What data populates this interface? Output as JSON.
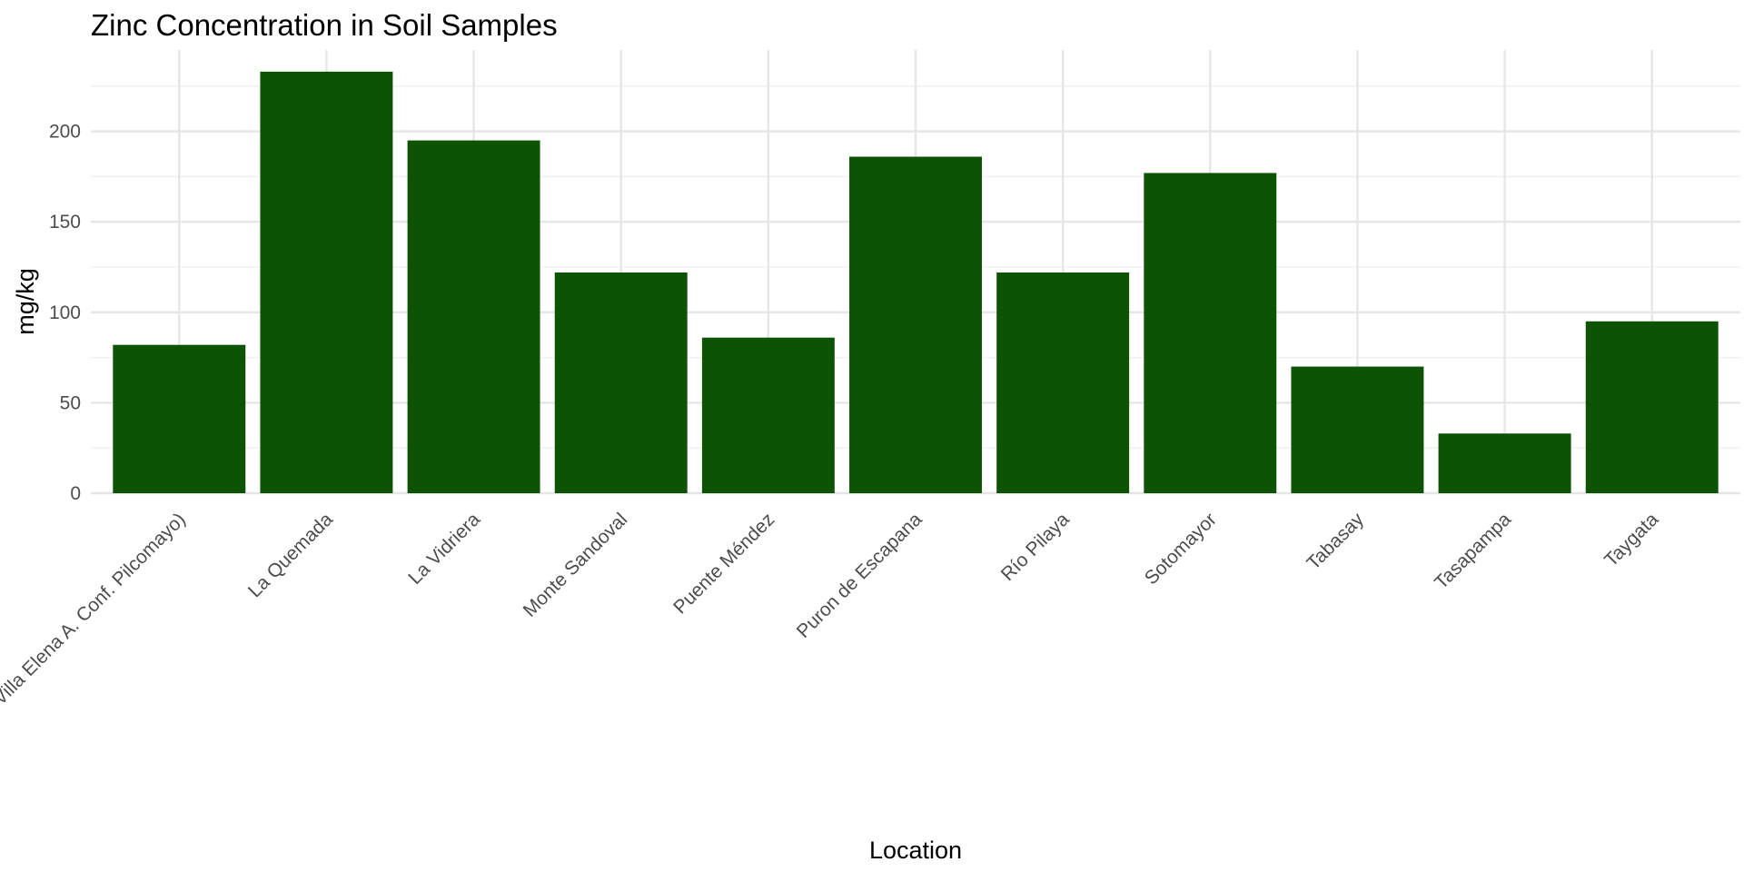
{
  "chart_data": {
    "type": "bar",
    "title": "Zinc Concentration in Soil Samples",
    "xlabel": "Location",
    "ylabel": "mg/kg",
    "categories": [
      "Villa Elena A. Conf. Pilcomayo)",
      "La Quemada",
      "La Vidriera",
      "Monte Sandoval",
      "Puente Méndez",
      "Puron de Escapana",
      "Río Pilaya",
      "Sotomayor",
      "Tabasay",
      "Tasapampa",
      "Taygata"
    ],
    "values": [
      82,
      233,
      195,
      122,
      86,
      186,
      122,
      177,
      70,
      33,
      95
    ],
    "ylim": [
      0,
      245
    ],
    "yticks": [
      0,
      50,
      100,
      150,
      200
    ],
    "bar_color": "#0d5304",
    "grid": true,
    "legend": "none"
  }
}
